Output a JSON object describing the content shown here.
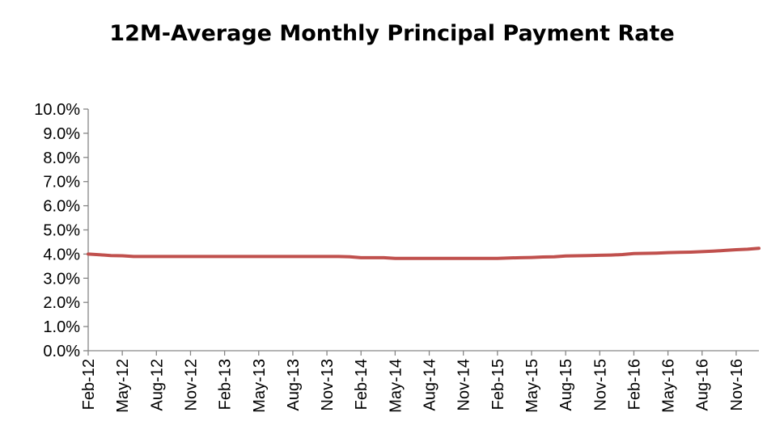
{
  "chart_data": {
    "type": "line",
    "title": "12M-Average Monthly Principal Payment Rate",
    "xlabel": "",
    "ylabel": "",
    "ylim": [
      0,
      10
    ],
    "y_ticks": [
      "0.0%",
      "1.0%",
      "2.0%",
      "3.0%",
      "4.0%",
      "5.0%",
      "6.0%",
      "7.0%",
      "8.0%",
      "9.0%",
      "10.0%"
    ],
    "x_tick_labels": [
      "Feb-12",
      "May-12",
      "Aug-12",
      "Nov-12",
      "Feb-13",
      "May-13",
      "Aug-13",
      "Nov-13",
      "Feb-14",
      "May-14",
      "Aug-14",
      "Nov-14",
      "Feb-15",
      "May-15",
      "Aug-15",
      "Nov-15",
      "Feb-16",
      "May-16",
      "Aug-16",
      "Nov-16"
    ],
    "grid": false,
    "legend": "none",
    "colors": {
      "line": "#C0504D",
      "axis": "#868686"
    },
    "series": [
      {
        "x": [
          "Feb-12",
          "Mar-12",
          "Apr-12",
          "May-12",
          "Jun-12",
          "Jul-12",
          "Aug-12",
          "Sep-12",
          "Oct-12",
          "Nov-12",
          "Dec-12",
          "Jan-13",
          "Feb-13",
          "Mar-13",
          "Apr-13",
          "May-13",
          "Jun-13",
          "Jul-13",
          "Aug-13",
          "Sep-13",
          "Oct-13",
          "Nov-13",
          "Dec-13",
          "Jan-14",
          "Feb-14",
          "Mar-14",
          "Apr-14",
          "May-14",
          "Jun-14",
          "Jul-14",
          "Aug-14",
          "Sep-14",
          "Oct-14",
          "Nov-14",
          "Dec-14",
          "Jan-15",
          "Feb-15",
          "Mar-15",
          "Apr-15",
          "May-15",
          "Jun-15",
          "Jul-15",
          "Aug-15",
          "Sep-15",
          "Oct-15",
          "Nov-15",
          "Dec-15",
          "Jan-16",
          "Feb-16",
          "Mar-16",
          "Apr-16",
          "May-16",
          "Jun-16",
          "Jul-16",
          "Aug-16",
          "Sep-16",
          "Oct-16",
          "Nov-16",
          "Dec-16",
          "Jan-17"
        ],
        "values": [
          4.0,
          3.97,
          3.94,
          3.93,
          3.9,
          3.9,
          3.9,
          3.9,
          3.9,
          3.9,
          3.9,
          3.9,
          3.9,
          3.9,
          3.9,
          3.9,
          3.9,
          3.9,
          3.9,
          3.9,
          3.9,
          3.9,
          3.9,
          3.89,
          3.85,
          3.85,
          3.85,
          3.82,
          3.82,
          3.82,
          3.82,
          3.82,
          3.82,
          3.82,
          3.82,
          3.82,
          3.82,
          3.84,
          3.85,
          3.86,
          3.88,
          3.89,
          3.92,
          3.93,
          3.94,
          3.95,
          3.96,
          3.98,
          4.02,
          4.03,
          4.04,
          4.06,
          4.07,
          4.08,
          4.1,
          4.12,
          4.15,
          4.18,
          4.2,
          4.24
        ]
      }
    ]
  }
}
